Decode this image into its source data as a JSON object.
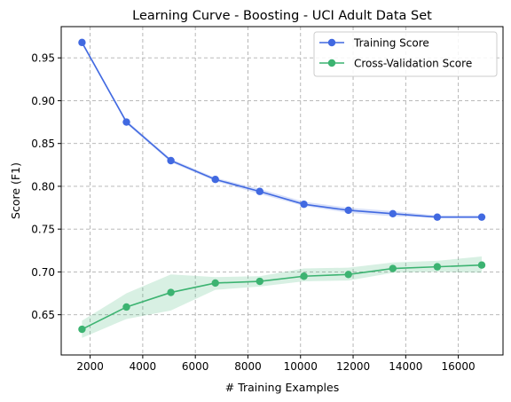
{
  "chart_data": {
    "type": "line",
    "title": "Learning Curve - Boosting - UCI Adult Data Set",
    "xlabel": "# Training Examples",
    "ylabel": "Score (F1)",
    "xlim": [
      900,
      17700
    ],
    "ylim": [
      0.603,
      0.9865
    ],
    "xticks": [
      2000,
      4000,
      6000,
      8000,
      10000,
      12000,
      14000,
      16000
    ],
    "yticks": [
      0.65,
      0.7,
      0.75,
      0.8,
      0.85,
      0.9,
      0.95
    ],
    "xtick_labels": [
      "2000",
      "4000",
      "6000",
      "8000",
      "10000",
      "12000",
      "14000",
      "16000"
    ],
    "ytick_labels": [
      "0.65",
      "0.70",
      "0.75",
      "0.80",
      "0.85",
      "0.90",
      "0.95"
    ],
    "grid": true,
    "legend_position": "top-right",
    "x": [
      1690,
      3380,
      5070,
      6760,
      8450,
      10130,
      11820,
      13510,
      15200,
      16890
    ],
    "series": [
      {
        "name": "Training Score",
        "color": "#4169e1",
        "values": [
          0.968,
          0.875,
          0.83,
          0.808,
          0.794,
          0.779,
          0.772,
          0.768,
          0.764,
          0.764
        ],
        "band_low": [
          0.966,
          0.873,
          0.828,
          0.806,
          0.791,
          0.777,
          0.769,
          0.765,
          0.763,
          0.763
        ],
        "band_high": [
          0.97,
          0.877,
          0.832,
          0.81,
          0.797,
          0.782,
          0.775,
          0.771,
          0.766,
          0.766
        ]
      },
      {
        "name": "Cross-Validation Score",
        "color": "#3cb371",
        "values": [
          0.633,
          0.659,
          0.676,
          0.687,
          0.689,
          0.695,
          0.697,
          0.704,
          0.706,
          0.708
        ],
        "band_low": [
          0.623,
          0.645,
          0.655,
          0.679,
          0.683,
          0.689,
          0.69,
          0.699,
          0.7,
          0.699
        ],
        "band_high": [
          0.643,
          0.675,
          0.697,
          0.694,
          0.695,
          0.704,
          0.705,
          0.711,
          0.713,
          0.718
        ]
      }
    ]
  }
}
